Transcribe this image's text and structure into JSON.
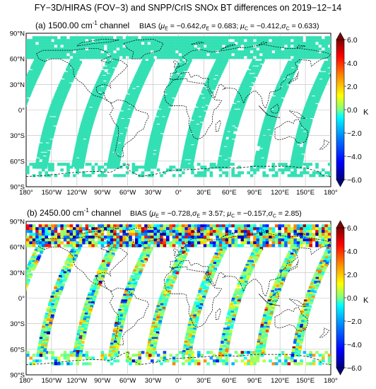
{
  "figure": {
    "title": "FY−3D/HIRAS (FOV−3) and SNPP/CrIS SNOx BT differences on 2019−12−14"
  },
  "panels": [
    {
      "label": "(a) 1500.00 cm",
      "label_sup": "-1",
      "label_tail": " channel",
      "bias_text": "BIAS (μ",
      "stats": [
        {
          "sym": "μ",
          "sub": "E",
          "value": "−0.642"
        },
        {
          "sym": "σ",
          "sub": "E",
          "value": "0.683"
        },
        {
          "sym": "μ",
          "sub": "C",
          "value": "−0.412"
        },
        {
          "sym": "σ",
          "sub": "C",
          "value": "0.633"
        }
      ],
      "stats_text": "BIAS (μE = −0.642, σE = 0.683; μC = −0.412, σC = 0.633)",
      "pattern": "uniform"
    },
    {
      "label": "(b) 2450.00 cm",
      "label_sup": "-1",
      "label_tail": " channel",
      "stats": [
        {
          "sym": "μ",
          "sub": "E",
          "value": "−0.728"
        },
        {
          "sym": "σ",
          "sub": "E",
          "value": "3.57"
        },
        {
          "sym": "μ",
          "sub": "C",
          "value": "−0.157"
        },
        {
          "sym": "σ",
          "sub": "C",
          "value": "2.85"
        }
      ],
      "stats_text": "BIAS (μE = −0.728, σE = 3.57; μC = −0.157, σC = 2.85)",
      "pattern": "noisy"
    }
  ],
  "axes": {
    "lat_ticks": [
      "90°N",
      "60°N",
      "30°N",
      "0°",
      "30°S",
      "60°S",
      "90°S"
    ],
    "lon_ticks": [
      "180°",
      "150°W",
      "120°W",
      "90°W",
      "60°W",
      "30°W",
      "0°",
      "30°E",
      "60°E",
      "90°E",
      "120°E",
      "150°E",
      "180°"
    ]
  },
  "colorbar": {
    "ticks": [
      "6.0",
      "4.0",
      "2.0",
      "0.0",
      "−2.0",
      "−4.0",
      "−6.0"
    ],
    "unit": "K",
    "range": [
      -6,
      6
    ],
    "colors": [
      "#00007f",
      "#0000ff",
      "#0080ff",
      "#00ffff",
      "#80ff80",
      "#ffff00",
      "#ff8000",
      "#ff0000",
      "#7f0000"
    ]
  },
  "colors": {
    "track": "#33e0b4",
    "coast": "#000000",
    "grid": "#bdbdbd"
  }
}
